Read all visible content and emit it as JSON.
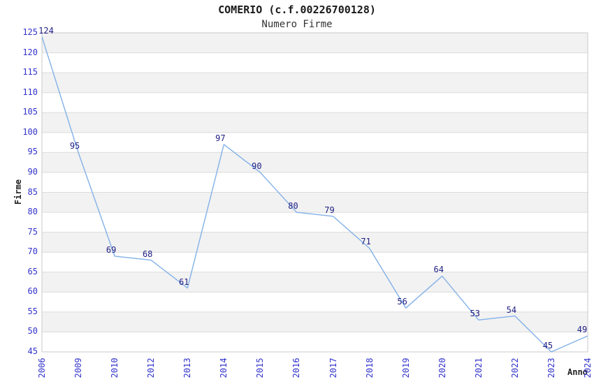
{
  "chart_data": {
    "type": "line",
    "title": "COMERIO (c.f.00226700128)",
    "subtitle": "Numero Firme",
    "xlabel": "Anno",
    "ylabel": "Firme",
    "categories": [
      "2006",
      "2009",
      "2010",
      "2012",
      "2013",
      "2014",
      "2015",
      "2016",
      "2017",
      "2018",
      "2019",
      "2020",
      "2021",
      "2022",
      "2023",
      "2024"
    ],
    "values": [
      124,
      95,
      69,
      68,
      61,
      97,
      90,
      80,
      79,
      71,
      56,
      64,
      53,
      54,
      45,
      49
    ],
    "data_labels_visible": true,
    "ylim": [
      45,
      125
    ],
    "ytick_step": 5,
    "xtick_rotation": 90,
    "grid": "horizontal",
    "band_fill": "alternating-gray",
    "legend": "none",
    "markers": "none",
    "colors": {
      "line": "#82b1e8",
      "data_label": "#202085",
      "tick_label": "#3333cc",
      "axis_title": "#222222",
      "title": "#1a1a1a",
      "subtitle": "#333333",
      "band": "#f2f2f2",
      "gridline": "#dcdcdc",
      "plot_border": "#c9c9c9",
      "background": "#ffffff"
    }
  }
}
